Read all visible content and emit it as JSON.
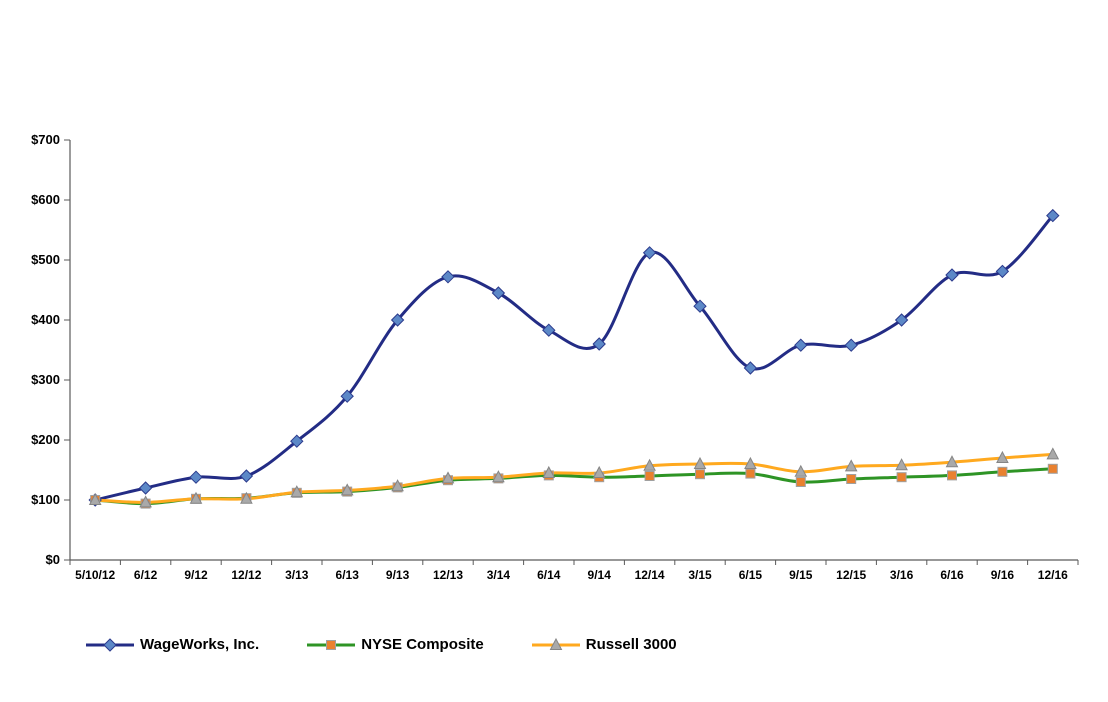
{
  "chart_data": {
    "type": "line",
    "title": "",
    "xlabel": "",
    "ylabel": "",
    "ylim": [
      0,
      700
    ],
    "ystep": 100,
    "grid": false,
    "legend_position": "bottom",
    "ytick_labels": [
      "$0",
      "$100",
      "$200",
      "$300",
      "$400",
      "$500",
      "$600",
      "$700"
    ],
    "categories": [
      "5/10/12",
      "6/12",
      "9/12",
      "12/12",
      "3/13",
      "6/13",
      "9/13",
      "12/13",
      "3/14",
      "6/14",
      "9/14",
      "12/14",
      "3/15",
      "6/15",
      "9/15",
      "12/15",
      "3/16",
      "6/16",
      "9/16",
      "12/16"
    ],
    "series": [
      {
        "name": "WageWorks, Inc.",
        "line_color": "#232C85",
        "line_width": 3,
        "marker": "diamond",
        "marker_fill": "#5C88C7",
        "marker_stroke": "#2B3A8C",
        "values": [
          100,
          120,
          138,
          140,
          198,
          273,
          400,
          472,
          445,
          383,
          360,
          512,
          423,
          320,
          358,
          358,
          400,
          475,
          481,
          574
        ]
      },
      {
        "name": "NYSE Composite",
        "line_color": "#2E9425",
        "line_width": 3,
        "marker": "square",
        "marker_fill": "#E9812F",
        "marker_stroke": "#A0A0A0",
        "values": [
          100,
          94,
          102,
          103,
          112,
          114,
          121,
          133,
          136,
          141,
          138,
          140,
          143,
          144,
          130,
          135,
          138,
          141,
          147,
          152
        ]
      },
      {
        "name": "Russell 3000",
        "line_color": "#FFA91F",
        "line_width": 3,
        "marker": "triangle",
        "marker_fill": "#A9A9A9",
        "marker_stroke": "#858585",
        "values": [
          100,
          96,
          102,
          102,
          113,
          116,
          123,
          136,
          138,
          145,
          145,
          157,
          160,
          160,
          147,
          156,
          158,
          163,
          170,
          176
        ]
      }
    ]
  }
}
